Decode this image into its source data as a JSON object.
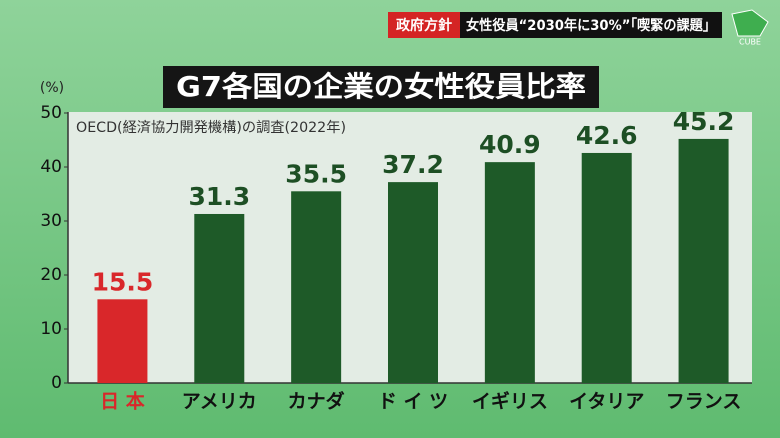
{
  "header": {
    "tag": "政府方針",
    "headline": "女性役員“2030年に30%”「喫緊の課題」",
    "logo": "CUBE"
  },
  "chart_data": {
    "type": "bar",
    "title": "G7各国の企業の女性役員比率",
    "y_label": "(%)",
    "note": "OECD(経済協力開発機構)の調査(2022年)",
    "categories": [
      "日 本",
      "アメリカ",
      "カナダ",
      "ド イ ツ",
      "イギリス",
      "イタリア",
      "フランス"
    ],
    "values": [
      15.5,
      31.3,
      35.5,
      37.2,
      40.9,
      42.6,
      45.2
    ],
    "colors": [
      "#d9272a",
      "#1e5a28",
      "#1e5a28",
      "#1e5a28",
      "#1e5a28",
      "#1e5a28",
      "#1e5a28"
    ],
    "ylim": [
      0,
      50
    ],
    "yticks": [
      0,
      10,
      20,
      30,
      40,
      50
    ],
    "grid": false
  }
}
